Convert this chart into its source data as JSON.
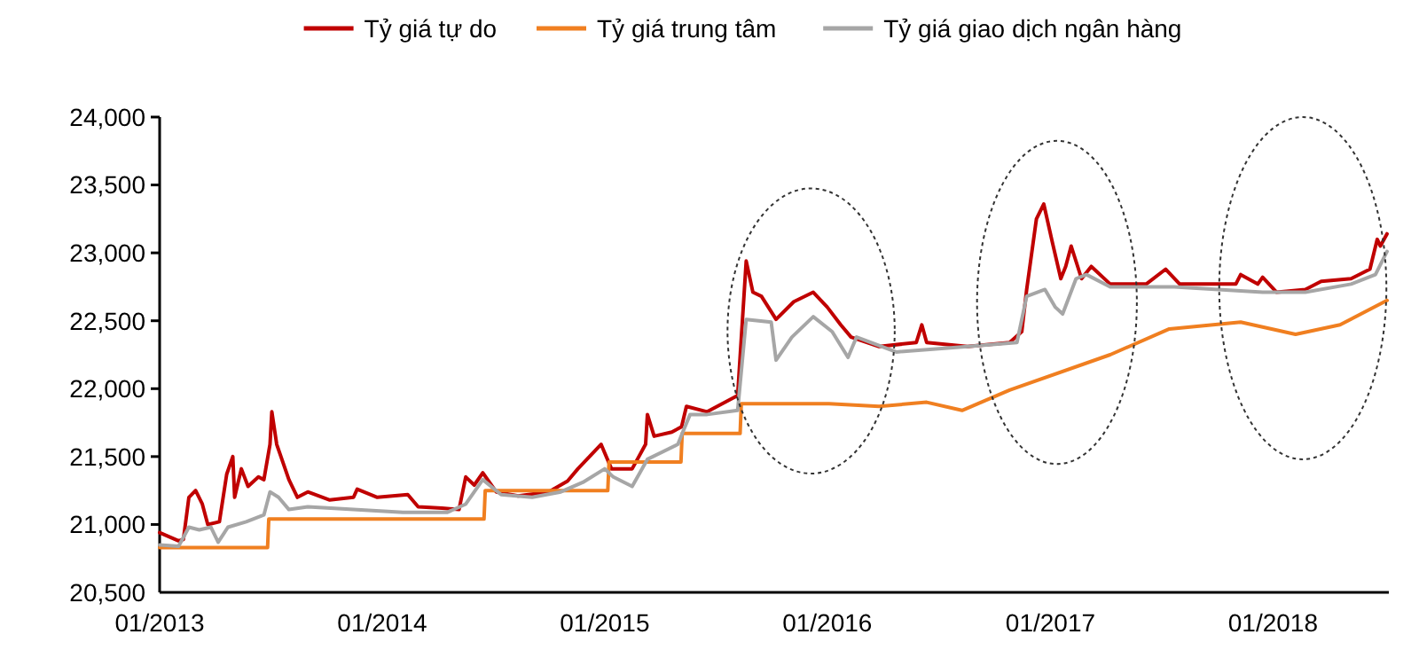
{
  "chart_data": {
    "type": "line",
    "legend": "top",
    "grid": false,
    "xlim": [
      "2013-01-01",
      "2018-07-10"
    ],
    "xticks": [
      {
        "value": "2013-01-01",
        "label": "01/2013"
      },
      {
        "value": "2014-01-01",
        "label": "01/2014"
      },
      {
        "value": "2015-01-01",
        "label": "01/2015"
      },
      {
        "value": "2016-01-01",
        "label": "01/2016"
      },
      {
        "value": "2017-01-01",
        "label": "01/2017"
      },
      {
        "value": "2018-01-01",
        "label": "01/2018"
      }
    ],
    "ylim": [
      20500,
      24000
    ],
    "yticks": [
      {
        "value": 20500,
        "label": "20,500"
      },
      {
        "value": 21000,
        "label": "21,000"
      },
      {
        "value": 21500,
        "label": "21,500"
      },
      {
        "value": 22000,
        "label": "22,000"
      },
      {
        "value": 22500,
        "label": "22,500"
      },
      {
        "value": 23000,
        "label": "23,000"
      },
      {
        "value": 23500,
        "label": "23,500"
      },
      {
        "value": 24000,
        "label": "24,000"
      }
    ],
    "series": [
      {
        "name": "Tỷ giá tự do",
        "color": "#c00000",
        "x": [
          "2013-01-01",
          "2013-02-01",
          "2013-02-09",
          "2013-02-18",
          "2013-03-01",
          "2013-03-12",
          "2013-03-21",
          "2013-04-09",
          "2013-04-21",
          "2013-05-01",
          "2013-05-04",
          "2013-05-15",
          "2013-05-26",
          "2013-06-12",
          "2013-06-21",
          "2013-07-01",
          "2013-07-04",
          "2013-07-12",
          "2013-08-01",
          "2013-08-15",
          "2013-09-01",
          "2013-10-07",
          "2013-11-15",
          "2013-11-21",
          "2013-12-24",
          "2014-02-12",
          "2014-03-01",
          "2014-04-09",
          "2014-05-07",
          "2014-05-18",
          "2014-06-01",
          "2014-06-15",
          "2014-07-07",
          "2014-08-12",
          "2014-10-01",
          "2014-11-01",
          "2014-11-18",
          "2014-12-07",
          "2014-12-26",
          "2015-01-12",
          "2015-02-15",
          "2015-03-09",
          "2015-03-12",
          "2015-03-23",
          "2015-04-21",
          "2015-05-07",
          "2015-05-15",
          "2015-06-18",
          "2015-08-07",
          "2015-08-21",
          "2015-09-01",
          "2015-09-15",
          "2015-10-09",
          "2015-11-07",
          "2015-12-09",
          "2016-01-01",
          "2016-01-23",
          "2016-02-09",
          "2016-03-26",
          "2016-05-26",
          "2016-06-04",
          "2016-06-12",
          "2016-08-18",
          "2016-10-26",
          "2016-11-15",
          "2016-11-23",
          "2016-12-09",
          "2016-12-21",
          "2017-01-04",
          "2017-01-18",
          "2017-01-26",
          "2017-02-04",
          "2017-02-21",
          "2017-03-09",
          "2017-04-09",
          "2017-06-07",
          "2017-07-09",
          "2017-08-01",
          "2017-11-01",
          "2017-11-09",
          "2017-12-07",
          "2017-12-15",
          "2018-01-07",
          "2018-02-23",
          "2018-03-21",
          "2018-05-09",
          "2018-06-09",
          "2018-06-21",
          "2018-06-26",
          "2018-07-07"
        ],
        "values": [
          20940,
          20880,
          20890,
          21200,
          21250,
          21150,
          21000,
          21020,
          21370,
          21500,
          21200,
          21410,
          21280,
          21350,
          21330,
          21590,
          21830,
          21590,
          21330,
          21200,
          21240,
          21180,
          21200,
          21260,
          21200,
          21220,
          21130,
          21120,
          21110,
          21350,
          21290,
          21380,
          21240,
          21210,
          21240,
          21320,
          21410,
          21500,
          21590,
          21410,
          21410,
          21590,
          21810,
          21650,
          21680,
          21720,
          21870,
          21830,
          21950,
          22940,
          22710,
          22680,
          22510,
          22640,
          22710,
          22600,
          22470,
          22380,
          22310,
          22340,
          22470,
          22340,
          22310,
          22340,
          22420,
          22730,
          23250,
          23360,
          23080,
          22810,
          22900,
          23050,
          22810,
          22900,
          22770,
          22770,
          22880,
          22770,
          22770,
          22840,
          22770,
          22820,
          22710,
          22730,
          22790,
          22810,
          22880,
          23100,
          23050,
          23140
        ]
      },
      {
        "name": "Tỷ giá trung tâm",
        "color": "#f07f20",
        "x": [
          "2013-01-01",
          "2013-06-27",
          "2013-06-29",
          "2014-06-17",
          "2014-06-19",
          "2015-01-06",
          "2015-01-08",
          "2015-05-06",
          "2015-05-08",
          "2015-08-11",
          "2015-08-13",
          "2016-01-04",
          "2016-03-26",
          "2016-06-12",
          "2016-08-09",
          "2016-10-26",
          "2017-04-09",
          "2017-07-15",
          "2017-11-09",
          "2018-02-07",
          "2018-04-21",
          "2018-07-07"
        ],
        "values": [
          20830,
          20830,
          21040,
          21040,
          21250,
          21250,
          21460,
          21460,
          21670,
          21670,
          21890,
          21890,
          21870,
          21900,
          21840,
          21990,
          22250,
          22440,
          22490,
          22400,
          22470,
          22650
        ]
      },
      {
        "name": "Tỷ giá giao dịch ngân hàng",
        "color": "#a6a6a6",
        "x": [
          "2013-01-01",
          "2013-02-01",
          "2013-02-18",
          "2013-03-07",
          "2013-03-26",
          "2013-04-07",
          "2013-04-23",
          "2013-05-23",
          "2013-06-21",
          "2013-07-01",
          "2013-07-15",
          "2013-08-01",
          "2013-09-01",
          "2013-11-15",
          "2014-02-04",
          "2014-04-18",
          "2014-05-18",
          "2014-06-15",
          "2014-07-15",
          "2014-09-04",
          "2014-10-21",
          "2014-11-26",
          "2015-01-01",
          "2015-01-15",
          "2015-02-15",
          "2015-03-12",
          "2015-05-01",
          "2015-05-09",
          "2015-05-21",
          "2015-06-18",
          "2015-08-07",
          "2015-08-21",
          "2015-10-01",
          "2015-10-09",
          "2015-11-04",
          "2015-12-09",
          "2016-01-09",
          "2016-02-04",
          "2016-02-18",
          "2016-04-23",
          "2016-08-18",
          "2016-11-07",
          "2016-11-23",
          "2016-12-23",
          "2017-01-09",
          "2017-01-21",
          "2017-02-12",
          "2017-03-01",
          "2017-04-09",
          "2017-07-23",
          "2017-12-15",
          "2018-02-23",
          "2018-05-09",
          "2018-06-18",
          "2018-07-07"
        ],
        "values": [
          20850,
          20840,
          20980,
          20960,
          20980,
          20870,
          20980,
          21020,
          21070,
          21240,
          21200,
          21110,
          21130,
          21110,
          21090,
          21090,
          21150,
          21330,
          21220,
          21200,
          21240,
          21310,
          21410,
          21350,
          21280,
          21480,
          21590,
          21680,
          21810,
          21810,
          21840,
          22510,
          22490,
          22210,
          22380,
          22530,
          22420,
          22230,
          22380,
          22270,
          22310,
          22340,
          22680,
          22730,
          22600,
          22550,
          22810,
          22840,
          22750,
          22750,
          22710,
          22710,
          22770,
          22840,
          23010
        ]
      }
    ]
  }
}
